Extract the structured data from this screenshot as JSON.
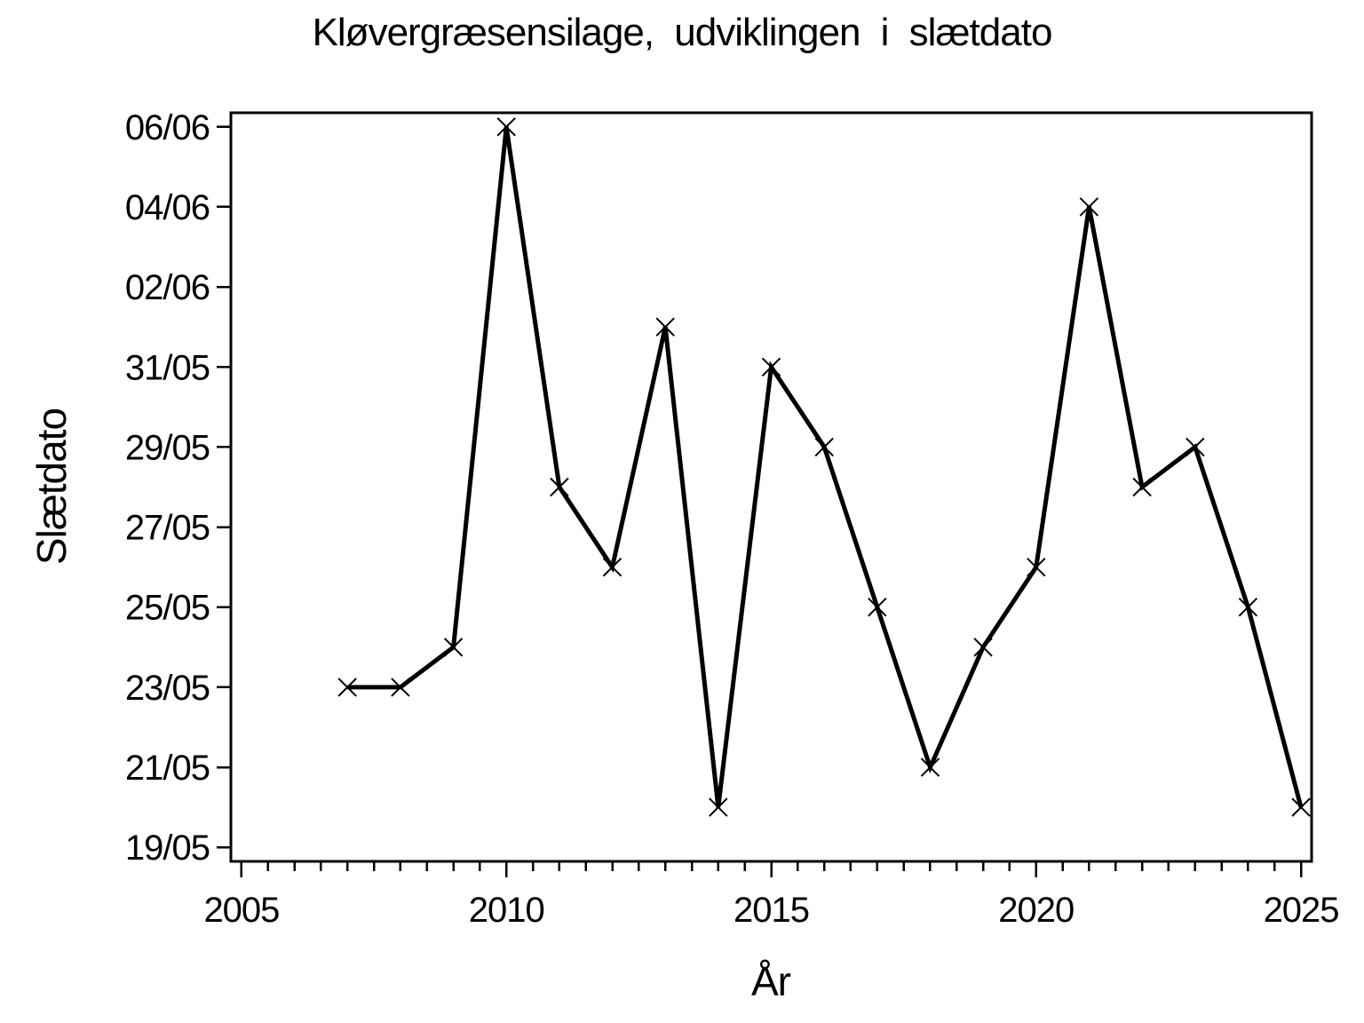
{
  "chart_data": {
    "type": "line",
    "title": "Kløvergræsensilage, udviklingen i slætdato",
    "xlabel": "År",
    "ylabel": "Slætdato",
    "grid": false,
    "legend": "none",
    "background": "#ffffff",
    "line_color": "#000000",
    "marker": "x",
    "x": [
      2007,
      2008,
      2009,
      2010,
      2011,
      2012,
      2013,
      2014,
      2015,
      2016,
      2017,
      2018,
      2019,
      2020,
      2021,
      2022,
      2023,
      2024,
      2025
    ],
    "y_dates": [
      "23/05",
      "23/05",
      "24/05",
      "06/06",
      "28/05",
      "26/05",
      "01/06",
      "20/05",
      "31/05",
      "29/05",
      "25/05",
      "21/05",
      "24/05",
      "26/05",
      "04/06",
      "28/05",
      "29/05",
      "25/05",
      "20/05"
    ],
    "y_days_after_19_05": [
      4,
      4,
      5,
      18,
      9,
      7,
      13,
      1,
      12,
      10,
      6,
      2,
      5,
      7,
      16,
      9,
      10,
      6,
      1
    ],
    "x_ticks_major": [
      2005,
      2010,
      2015,
      2020,
      2025
    ],
    "x_minor_step_years": 0.5,
    "y_ticks": [
      {
        "label": "06/06",
        "days": 18
      },
      {
        "label": "04/06",
        "days": 16
      },
      {
        "label": "02/06",
        "days": 14
      },
      {
        "label": "31/05",
        "days": 12
      },
      {
        "label": "29/05",
        "days": 10
      },
      {
        "label": "27/05",
        "days": 8
      },
      {
        "label": "25/05",
        "days": 6
      },
      {
        "label": "23/05",
        "days": 4
      },
      {
        "label": "21/05",
        "days": 2
      },
      {
        "label": "19/05",
        "days": 0
      }
    ],
    "xlim": [
      2004.8,
      2025.2
    ],
    "ylim_days": [
      -0.35,
      18.35
    ]
  }
}
